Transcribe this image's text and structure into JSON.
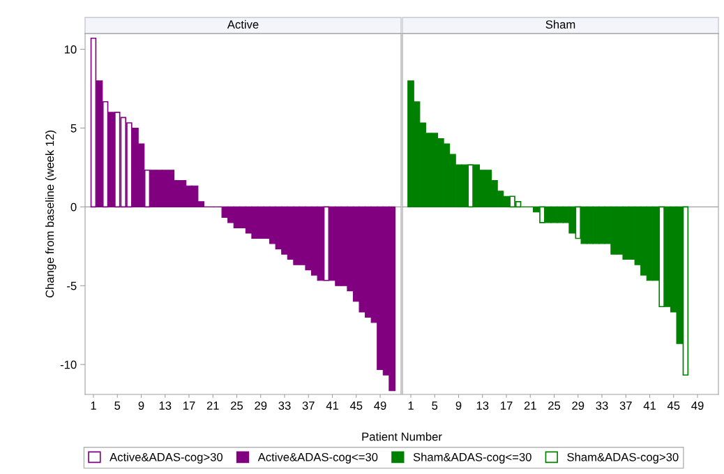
{
  "chart_data": [
    {
      "type": "bar",
      "title": "Active",
      "ylabel": "Change from baseline (week 12)",
      "xlabel": "Patient Number",
      "x": [
        1,
        2,
        3,
        4,
        5,
        6,
        7,
        8,
        9,
        10,
        11,
        12,
        13,
        14,
        15,
        16,
        17,
        18,
        19,
        20,
        21,
        22,
        23,
        24,
        25,
        26,
        27,
        28,
        29,
        30,
        31,
        32,
        33,
        34,
        35,
        36,
        37,
        38,
        39,
        40,
        41,
        42,
        43,
        44,
        45,
        46,
        47,
        48,
        49,
        50,
        51
      ],
      "series": [
        {
          "name": "Active&ADAS-cog>30",
          "color": "#ffffff",
          "values": [
            10.7,
            null,
            6.67,
            null,
            6.0,
            5.67,
            5.33,
            null,
            null,
            2.33,
            null,
            null,
            null,
            null,
            null,
            null,
            null,
            null,
            null,
            null,
            null,
            null,
            null,
            null,
            null,
            null,
            null,
            null,
            null,
            null,
            null,
            null,
            null,
            null,
            null,
            null,
            null,
            null,
            null,
            -4.67,
            null,
            null,
            null,
            null,
            null,
            null,
            null,
            null,
            null,
            null,
            null
          ]
        },
        {
          "name": "Active&ADAS-cog<=30",
          "color": "#800080",
          "values": [
            null,
            8.0,
            null,
            6.0,
            null,
            null,
            null,
            5.0,
            4.0,
            null,
            2.33,
            2.33,
            2.33,
            2.33,
            1.67,
            1.67,
            1.33,
            1.33,
            0.33,
            0,
            0,
            0,
            -0.67,
            -1.0,
            -1.33,
            -1.33,
            -1.67,
            -2.0,
            -2.0,
            -2.0,
            -2.33,
            -2.67,
            -3.0,
            -3.33,
            -3.67,
            -3.67,
            -4.0,
            -4.33,
            -4.67,
            null,
            -4.67,
            -5.0,
            -5.0,
            -5.33,
            -6.0,
            -6.67,
            -7.0,
            -7.33,
            -10.33,
            -10.67,
            -11.67
          ]
        }
      ],
      "xlim": [
        -0.4,
        52.5
      ],
      "xticks": [
        1,
        5,
        9,
        13,
        17,
        21,
        25,
        29,
        33,
        37,
        41,
        45,
        49
      ],
      "ylim": [
        -11.9,
        11.0
      ],
      "yticks": [
        -10,
        -5,
        0,
        5,
        10
      ],
      "ref_lines": [
        {
          "axis": "y",
          "value": 0,
          "color": "#a0a0a0"
        }
      ],
      "legend": "bottom",
      "grid": false
    },
    {
      "type": "bar",
      "title": "Sham",
      "x": [
        1,
        2,
        3,
        4,
        5,
        6,
        7,
        8,
        9,
        10,
        11,
        12,
        13,
        14,
        15,
        16,
        17,
        18,
        19,
        20,
        21,
        22,
        23,
        24,
        25,
        26,
        27,
        28,
        29,
        30,
        31,
        32,
        33,
        34,
        35,
        36,
        37,
        38,
        39,
        40,
        41,
        42,
        43,
        44,
        45,
        46,
        47
      ],
      "series": [
        {
          "name": "Sham&ADAS-cog<=30",
          "color": "#008000",
          "values": [
            8.0,
            6.67,
            5.33,
            4.67,
            4.67,
            4.33,
            4.0,
            3.33,
            2.67,
            2.67,
            null,
            2.67,
            2.33,
            2.33,
            1.67,
            1.0,
            0.67,
            null,
            null,
            0,
            0,
            -0.33,
            null,
            -1.0,
            -1.0,
            -1.0,
            -1.0,
            -1.67,
            null,
            -2.33,
            -2.33,
            -2.33,
            -2.33,
            -2.33,
            -3.0,
            -3.0,
            -3.33,
            -3.33,
            -3.67,
            -4.33,
            -4.67,
            -4.67,
            null,
            -6.33,
            -6.67,
            -8.67,
            null
          ]
        },
        {
          "name": "Sham&ADAS-cog>30",
          "color": "#ffffff",
          "values": [
            null,
            null,
            null,
            null,
            null,
            null,
            null,
            null,
            null,
            null,
            2.67,
            null,
            null,
            null,
            null,
            null,
            null,
            0.67,
            0.33,
            null,
            null,
            null,
            -1.0,
            null,
            null,
            null,
            null,
            null,
            -2.0,
            null,
            null,
            null,
            null,
            null,
            null,
            null,
            null,
            null,
            null,
            null,
            null,
            null,
            -6.33,
            null,
            null,
            null,
            -10.67
          ]
        }
      ],
      "xlim": [
        -0.4,
        52.5
      ],
      "xticks": [
        1,
        5,
        9,
        13,
        17,
        21,
        25,
        29,
        33,
        37,
        41,
        45,
        49
      ],
      "ylim": [
        -11.9,
        11.0
      ],
      "yticks": [
        -10,
        -5,
        0,
        5,
        10
      ],
      "ref_lines": [
        {
          "axis": "y",
          "value": 0,
          "color": "#a0a0a0"
        }
      ],
      "tick_labels": "x",
      "legend": "bottom",
      "grid": false
    }
  ]
}
